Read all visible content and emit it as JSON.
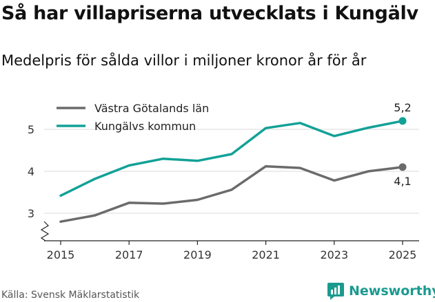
{
  "header": {
    "title": "Så har villapriserna utvecklats i Kungälv",
    "subtitle": "Medelpris för sålda villor i miljoner kronor år för år"
  },
  "footer": {
    "source": "Källa: Svensk Mäklarstatistik",
    "brand_name": "Newsworthy",
    "brand_icon": "newsworthy-logo-icon",
    "brand_color": "#1a9a8f"
  },
  "chart_data": {
    "type": "line",
    "title": "Så har villapriserna utvecklats i Kungälv",
    "subtitle": "Medelpris för sålda villor i miljoner kronor år för år",
    "xlabel": "",
    "ylabel": "",
    "x": [
      2015,
      2016,
      2017,
      2018,
      2019,
      2020,
      2021,
      2022,
      2023,
      2024,
      2025
    ],
    "xticks": [
      "2015",
      "2017",
      "2019",
      "2021",
      "2023",
      "2025"
    ],
    "yticks": [
      "3",
      "4",
      "5"
    ],
    "ylim": [
      2.6,
      5.6
    ],
    "y_axis_break": true,
    "grid": true,
    "legend_position": "top-left",
    "series": [
      {
        "name": "Västra Götalands län",
        "color": "#6b6b6b",
        "values": [
          2.8,
          2.95,
          3.25,
          3.23,
          3.32,
          3.56,
          4.12,
          4.08,
          3.78,
          4.0,
          4.1
        ],
        "end_label": "4,1"
      },
      {
        "name": "Kungälvs kommun",
        "color": "#12a197",
        "values": [
          3.42,
          3.82,
          4.14,
          4.3,
          4.25,
          4.41,
          5.03,
          5.15,
          4.84,
          5.04,
          5.2
        ],
        "end_label": "5,2"
      }
    ]
  }
}
